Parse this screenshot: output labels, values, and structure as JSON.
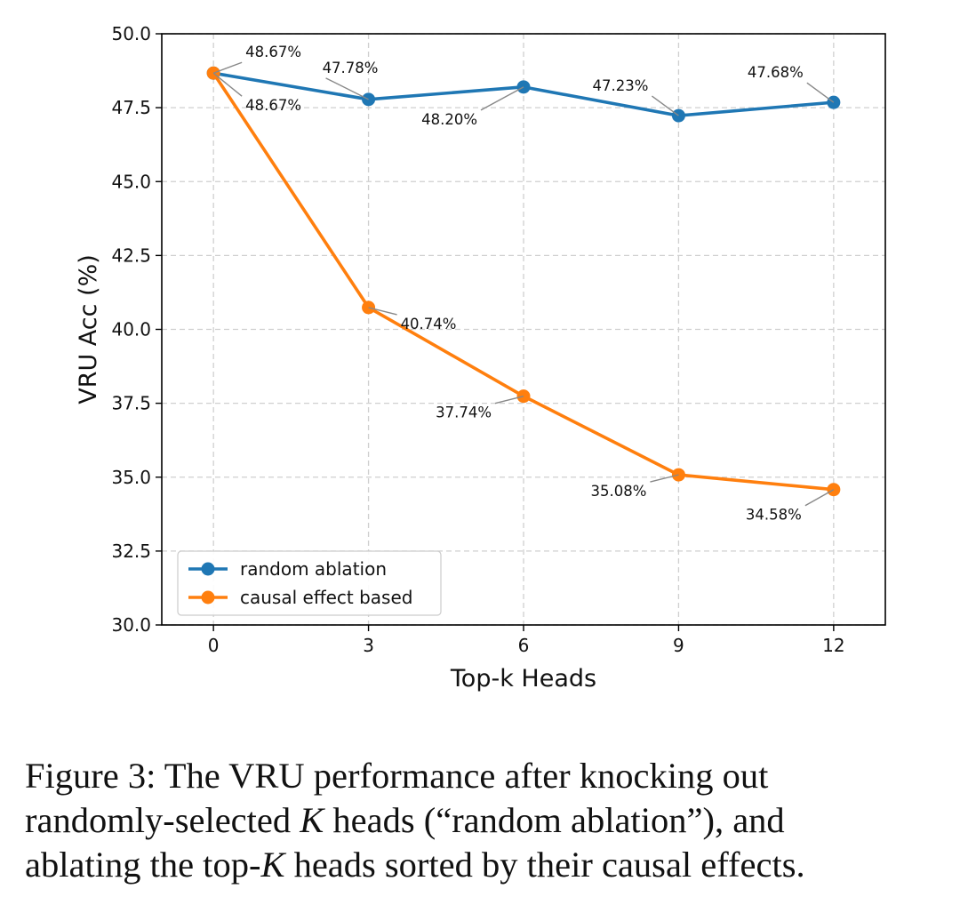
{
  "chart_data": {
    "type": "line",
    "xlabel": "Top-k Heads",
    "ylabel": "VRU Acc (%)",
    "x": [
      0,
      3,
      6,
      9,
      12
    ],
    "xticks": [
      "0",
      "3",
      "6",
      "9",
      "12"
    ],
    "yticks": [
      "30.0",
      "32.5",
      "35.0",
      "37.5",
      "40.0",
      "42.5",
      "45.0",
      "47.5",
      "50.0"
    ],
    "ylim": [
      30.0,
      50.0
    ],
    "grid": true,
    "legend_position": "lower-left",
    "series": [
      {
        "name": "random ablation",
        "color": "#1f77b4",
        "values": [
          48.67,
          47.78,
          48.2,
          47.23,
          47.68
        ],
        "labels": [
          "48.67%",
          "47.78%",
          "48.20%",
          "47.23%",
          "47.68%"
        ]
      },
      {
        "name": "causal effect based",
        "color": "#ff7f0e",
        "values": [
          48.67,
          40.74,
          37.74,
          35.08,
          34.58
        ],
        "labels": [
          "48.67%",
          "40.74%",
          "37.74%",
          "35.08%",
          "34.58%"
        ]
      }
    ]
  },
  "caption": {
    "line1": "Figure 3: The VRU performance after knocking out",
    "line2_a": "randomly-selected ",
    "line2_k": "K",
    "line2_b": " heads (“random ablation”), and",
    "line3_a": "ablating the top-",
    "line3_k": "K",
    "line3_b": " heads sorted by their causal effects."
  }
}
